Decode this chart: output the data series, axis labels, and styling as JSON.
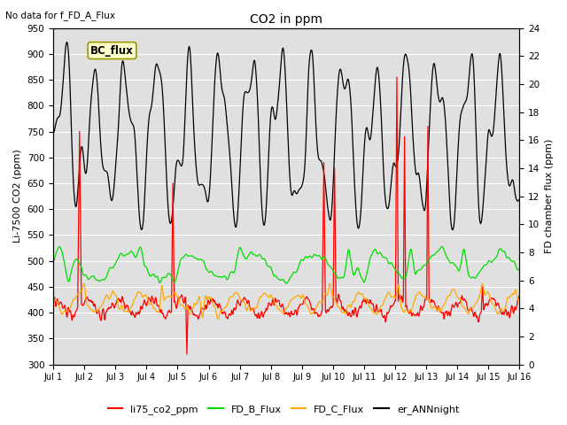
{
  "title": "CO2 in ppm",
  "top_left_note": "No data for f_FD_A_Flux",
  "box_label": "BC_flux",
  "ylabel_left": "Li-7500 CO2 (ppm)",
  "ylabel_right": "FD chamber flux (ppm)",
  "ylim_left": [
    300,
    950
  ],
  "ylim_right": [
    0,
    24
  ],
  "yticks_left": [
    300,
    350,
    400,
    450,
    500,
    550,
    600,
    650,
    700,
    750,
    800,
    850,
    900,
    950
  ],
  "yticks_right": [
    0,
    2,
    4,
    6,
    8,
    10,
    12,
    14,
    16,
    18,
    20,
    22,
    24
  ],
  "xtick_labels": [
    "Jul 1",
    "Jul 2",
    "Jul 3",
    "Jul 4",
    "Jul 5",
    "Jul 6",
    "Jul 7",
    "Jul 8",
    "Jul 9",
    "Jul 10",
    "Jul 11",
    "Jul 12",
    "Jul 13",
    "Jul 14",
    "Jul 15",
    "Jul 16"
  ],
  "colors": {
    "li75_co2_ppm": "#ff0000",
    "FD_B_Flux": "#00dd00",
    "FD_C_Flux": "#ffaa00",
    "er_ANNnight": "#000000"
  },
  "legend_labels": [
    "li75_co2_ppm",
    "FD_B_Flux",
    "FD_C_Flux",
    "er_ANNnight"
  ],
  "background_color": "#ffffff",
  "plot_bg_color": "#e0e0e0",
  "grid_color": "#ffffff",
  "n_points": 2000
}
